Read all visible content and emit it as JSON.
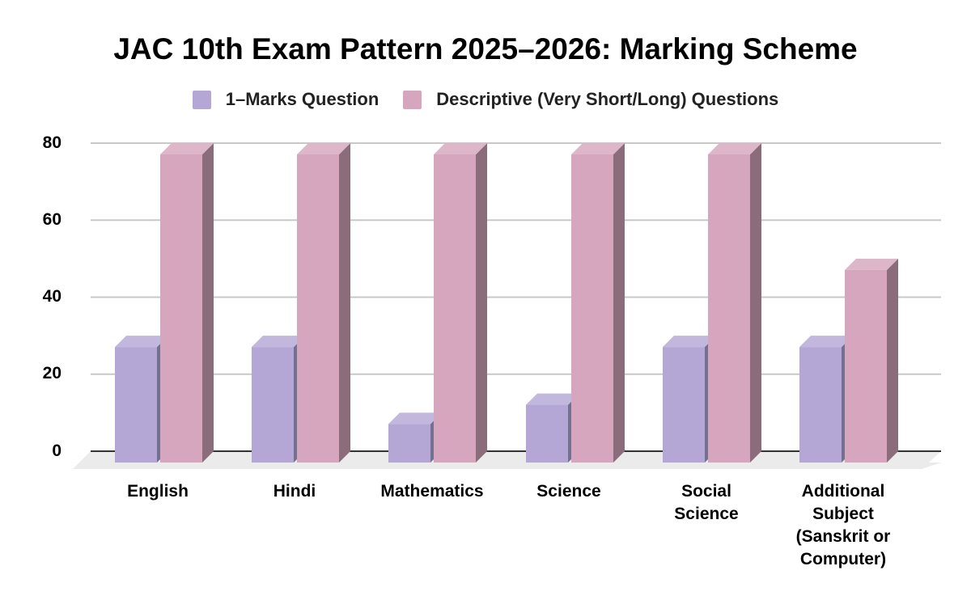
{
  "chart_data": {
    "type": "bar",
    "style": "3d-clustered-column",
    "title": "JAC 10th Exam Pattern 2025–2026: Marking Scheme",
    "categories": [
      "English",
      "Hindi",
      "Mathematics",
      "Science",
      "Social Science",
      "Additional Subject (Sanskrit or Computer)"
    ],
    "series": [
      {
        "name": "1–Marks Question",
        "color": "#b4a7d6",
        "values": [
          30,
          30,
          10,
          15,
          30,
          30
        ]
      },
      {
        "name": "Descriptive (Very Short/Long) Questions",
        "color": "#d5a6bd",
        "values": [
          80,
          80,
          80,
          80,
          80,
          50
        ]
      }
    ],
    "xlabel": "",
    "ylabel": "",
    "ylim": [
      0,
      80
    ],
    "yticks": [
      0,
      20,
      40,
      60,
      80
    ],
    "grid": true,
    "legend_position": "top"
  },
  "title": "JAC 10th Exam Pattern 2025–2026: Marking Scheme",
  "legend": [
    {
      "label": "1–Marks Question",
      "color": "#b4a7d6"
    },
    {
      "label": "Descriptive (Very Short/Long) Questions",
      "color": "#d5a6bd"
    }
  ],
  "yaxis": {
    "ticks": [
      "80",
      "60",
      "40",
      "20",
      "0"
    ]
  },
  "xaxis": {
    "labels": [
      [
        "English"
      ],
      [
        "Hindi"
      ],
      [
        "Mathematics"
      ],
      [
        "Science"
      ],
      [
        "Social",
        "Science"
      ],
      [
        "Additional",
        "Subject",
        "(Sanskrit or",
        "Computer)"
      ]
    ]
  }
}
